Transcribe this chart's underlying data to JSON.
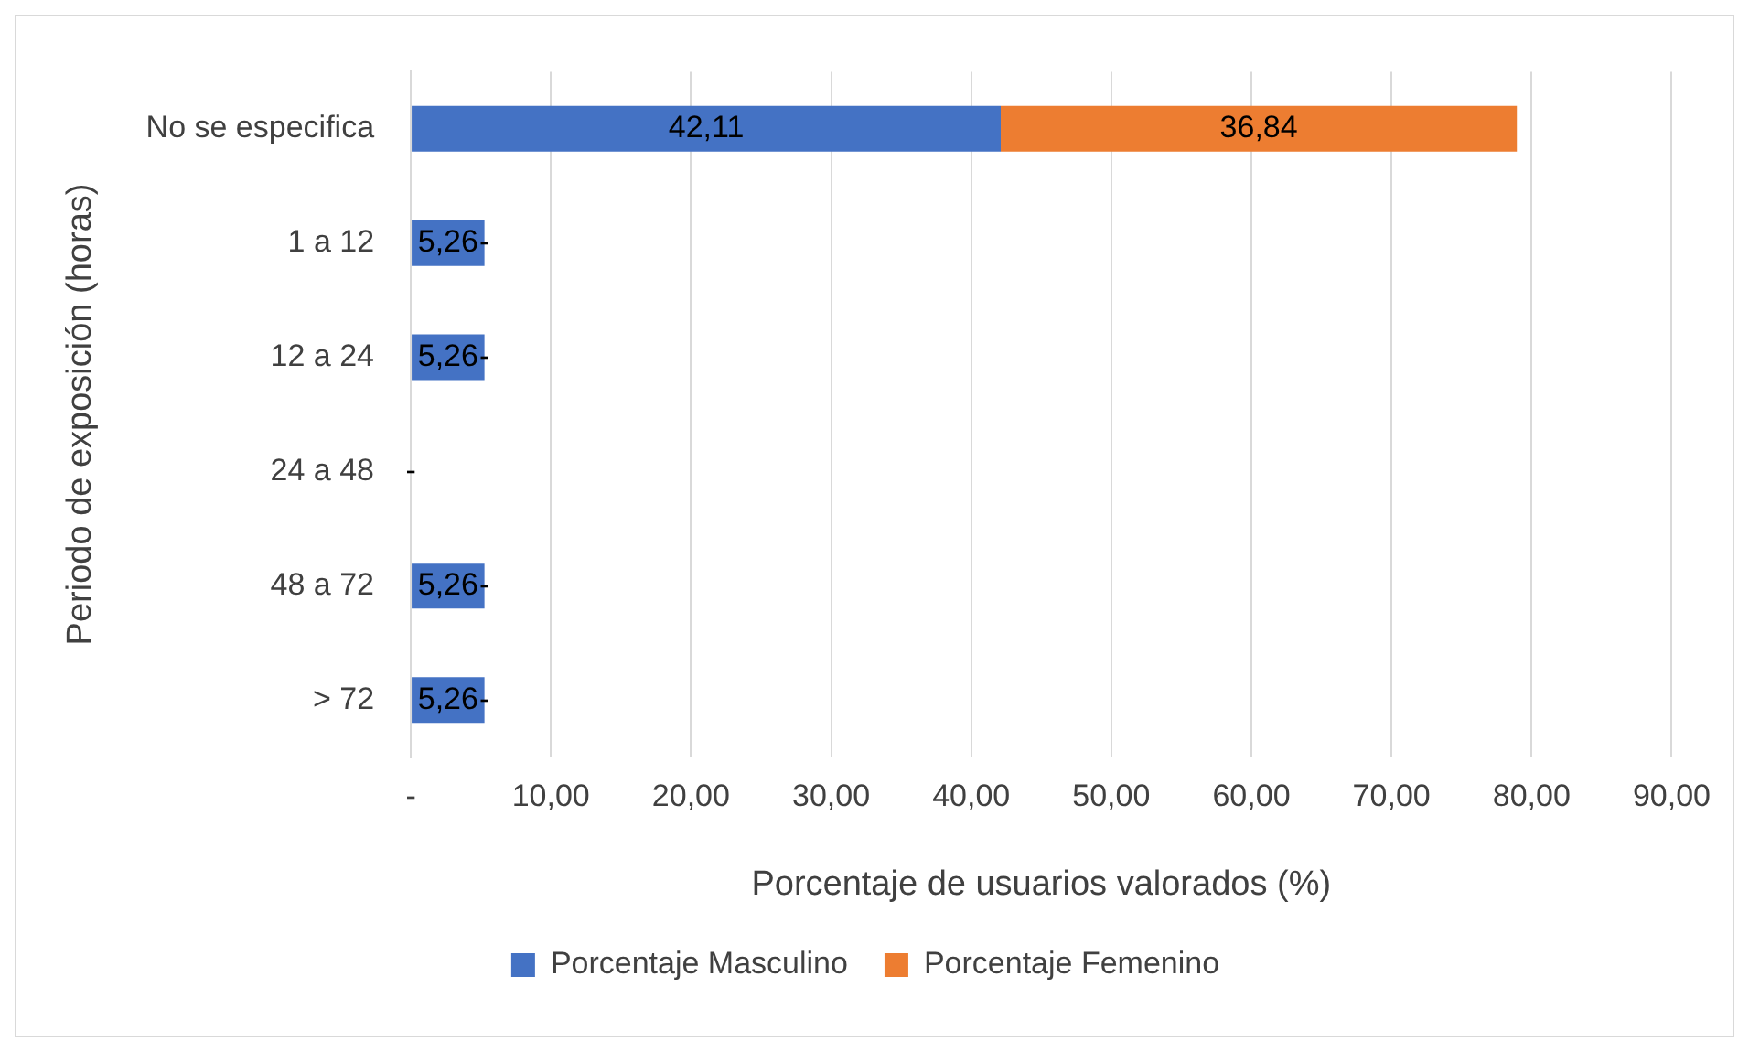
{
  "chart_data": {
    "type": "bar",
    "orientation": "horizontal",
    "stacked": true,
    "xlabel": "Porcentaje de usuarios valorados (%)",
    "ylabel": "Periodo de exposición (horas)",
    "categories": [
      "No se especifica",
      "1 a 12",
      "12 a 24",
      "24 a 48",
      "48 a 72",
      "> 72"
    ],
    "series": [
      {
        "name": "Porcentaje Masculino",
        "color": "#4472c4",
        "values": [
          42.11,
          5.26,
          5.26,
          0,
          5.26,
          5.26
        ],
        "value_labels": [
          "42,11",
          "5,26",
          "5,26",
          "-",
          "5,26",
          "5,26"
        ]
      },
      {
        "name": "Porcentaje Femenino",
        "color": "#ed7d31",
        "values": [
          36.84,
          0,
          0,
          0,
          0,
          0
        ],
        "value_labels": [
          "36,84",
          "-",
          "-",
          null,
          "-",
          "-"
        ]
      }
    ],
    "xlim": [
      0,
      90
    ],
    "xticks": [
      {
        "value": 0,
        "label": "-"
      },
      {
        "value": 10,
        "label": "10,00"
      },
      {
        "value": 20,
        "label": "20,00"
      },
      {
        "value": 30,
        "label": "30,00"
      },
      {
        "value": 40,
        "label": "40,00"
      },
      {
        "value": 50,
        "label": "50,00"
      },
      {
        "value": 60,
        "label": "60,00"
      },
      {
        "value": 70,
        "label": "70,00"
      },
      {
        "value": 80,
        "label": "80,00"
      },
      {
        "value": 90,
        "label": "90,00"
      }
    ],
    "grid": "x",
    "legend": "bottom"
  }
}
